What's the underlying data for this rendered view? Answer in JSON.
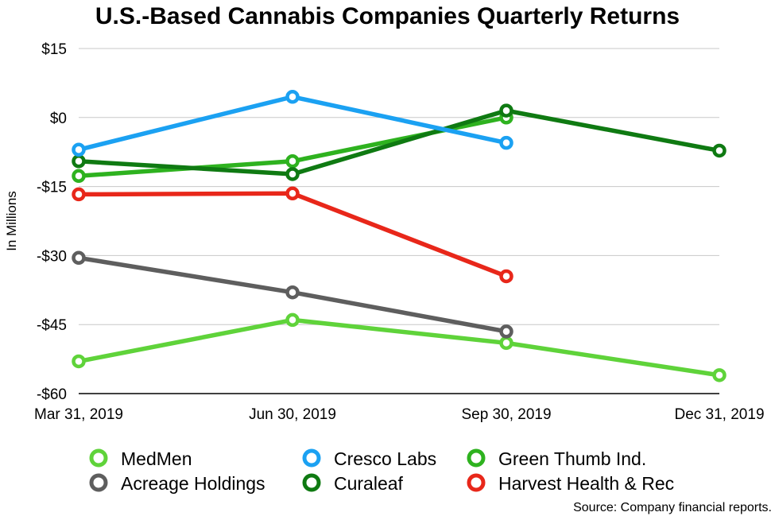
{
  "chart_data": {
    "type": "line",
    "title": "U.S.-Based Cannabis Companies Quarterly Returns",
    "xlabel": "",
    "ylabel": "In Millions",
    "categories": [
      "Mar 31, 2019",
      "Jun 30, 2019",
      "Sep 30, 2019",
      "Dec 31, 2019"
    ],
    "ylim": [
      -60,
      15
    ],
    "yticks": [
      15,
      0,
      -15,
      -30,
      -45,
      -60
    ],
    "ytick_labels": [
      "$15",
      "$0",
      "-$15",
      "-$30",
      "-$45",
      "-$60"
    ],
    "grid": true,
    "legend_position": "bottom",
    "series": [
      {
        "name": "MedMen",
        "color": "#5fd33a",
        "values": [
          -53,
          -44,
          -49,
          -56
        ]
      },
      {
        "name": "Acreage Holdings",
        "color": "#5e5e5e",
        "values": [
          -30.5,
          -38,
          -46.5,
          null
        ]
      },
      {
        "name": "Cresco Labs",
        "color": "#1ba1f2",
        "values": [
          -7,
          4.5,
          -5.5,
          null
        ]
      },
      {
        "name": "Curaleaf",
        "color": "#0f7a12",
        "values": [
          -9.5,
          -12.3,
          1.5,
          -7.2
        ]
      },
      {
        "name": "Green Thumb Ind.",
        "color": "#2eb21f",
        "values": [
          -12.7,
          -9.5,
          0,
          null
        ]
      },
      {
        "name": "Harvest Health & Rec",
        "color": "#e8271a",
        "values": [
          -16.7,
          -16.5,
          -34.5,
          null
        ]
      }
    ],
    "draw_order": [
      "MedMen",
      "Acreage Holdings",
      "Green Thumb Ind.",
      "Curaleaf",
      "Cresco Labs",
      "Harvest Health & Rec"
    ]
  },
  "source_note": "Source: Company financial reports."
}
